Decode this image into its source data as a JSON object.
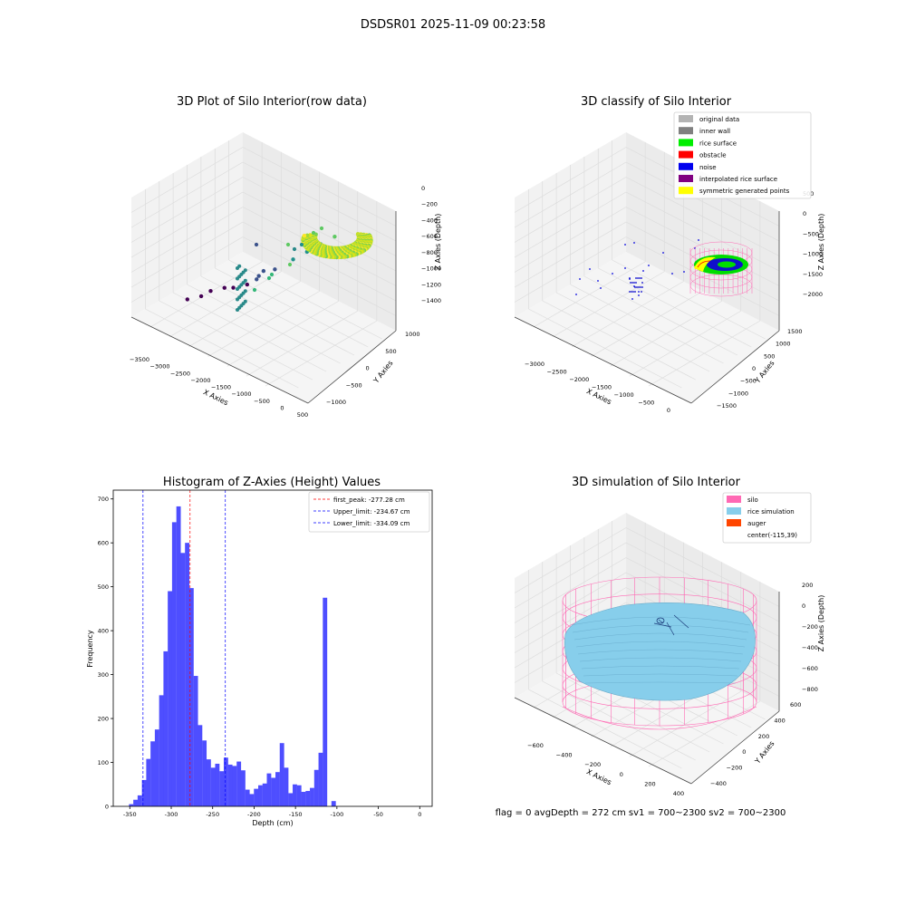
{
  "figure": {
    "suptitle": "DSDSR01 2025-11-09 00:23:58",
    "status_line": "flag = 0     avgDepth = 272 cm  sv1 = 700~2300  sv2 = 700~2300"
  },
  "chart_data": [
    {
      "type": "scatter",
      "title": "3D Plot of Silo Interior(row data)",
      "xlabel": "X Axies",
      "ylabel": "Y Axies",
      "zlabel": "Z Axies (Depth)",
      "x_ticks": [
        "−3500",
        "−3000",
        "−2500",
        "−2000",
        "−1500",
        "−1000",
        "−500",
        "0",
        "500"
      ],
      "y_ticks": [
        "1000",
        "500",
        "0",
        "−500",
        "−1000"
      ],
      "z_ticks": [
        "0",
        "−200",
        "−400",
        "−600",
        "−800",
        "−1000",
        "−1200",
        "−1400"
      ],
      "points": [
        {
          "x": -2800,
          "y": -500,
          "z": -1400
        },
        {
          "x": -2600,
          "y": -400,
          "z": -1350
        },
        {
          "x": -2500,
          "y": -300,
          "z": -1300
        },
        {
          "x": -2300,
          "y": -200,
          "z": -1250
        },
        {
          "x": -2100,
          "y": -200,
          "z": -1200
        },
        {
          "x": -1900,
          "y": -100,
          "z": -1150
        },
        {
          "x": -1800,
          "y": 0,
          "z": -1100
        },
        {
          "x": -1750,
          "y": 0,
          "z": -1050
        },
        {
          "x": -1700,
          "y": 50,
          "z": -1000
        },
        {
          "x": -1500,
          "y": 100,
          "z": -950
        },
        {
          "x": -1200,
          "y": 200,
          "z": -800
        },
        {
          "x": -1000,
          "y": 300,
          "z": -700
        },
        {
          "x": -800,
          "y": 400,
          "z": -600
        },
        {
          "x": -600,
          "y": 500,
          "z": -500
        }
      ],
      "surface": {
        "x_center": -300,
        "y_center": 200,
        "z_min": -650,
        "z_max": -250
      },
      "colormap": "viridis"
    },
    {
      "type": "scatter",
      "title": "3D classify of Silo Interior",
      "xlabel": "X Axies",
      "ylabel": "Y Axies",
      "zlabel": "Z Axies (Depth)",
      "x_ticks": [
        "−3000",
        "−2500",
        "−2000",
        "−1500",
        "−1000",
        "−500",
        "0"
      ],
      "y_ticks": [
        "1500",
        "1000",
        "500",
        "0",
        "−500",
        "−1000",
        "−1500"
      ],
      "z_ticks": [
        "500",
        "0",
        "−500",
        "−1000",
        "−1500",
        "−2000"
      ],
      "legend": [
        {
          "label": "original data",
          "color": "#b3b3b3"
        },
        {
          "label": "inner wall",
          "color": "#808080"
        },
        {
          "label": "rice surface",
          "color": "#00ee00"
        },
        {
          "label": "obstacle",
          "color": "#ff0000"
        },
        {
          "label": "noise",
          "color": "#0000ee"
        },
        {
          "label": "interpolated rice surface",
          "color": "#800080"
        },
        {
          "label": "symmetric generated points",
          "color": "#ffff00"
        }
      ]
    },
    {
      "type": "bar",
      "title": "Histogram of Z-Axies (Height) Values",
      "xlabel": "Depth (cm)",
      "ylabel": "Frequency",
      "xlim": [
        -370,
        15
      ],
      "ylim": [
        0,
        720
      ],
      "x_ticks": [
        -350,
        -300,
        -250,
        -200,
        -150,
        -100,
        -50,
        0
      ],
      "y_ticks": [
        0,
        100,
        200,
        300,
        400,
        500,
        600,
        700
      ],
      "bin_width": 5.2,
      "bin_start": -351,
      "values": [
        5,
        15,
        25,
        60,
        108,
        148,
        175,
        253,
        353,
        490,
        647,
        683,
        577,
        600,
        497,
        297,
        185,
        150,
        107,
        88,
        97,
        80,
        111,
        95,
        92,
        102,
        82,
        38,
        28,
        40,
        48,
        52,
        75,
        65,
        78,
        144,
        88,
        30,
        50,
        48,
        33,
        35,
        42,
        83,
        122,
        475,
        0,
        12
      ],
      "bar_color": "#4444ff",
      "vlines": [
        {
          "label": "first_peak: -277.28 cm",
          "x": -277.28,
          "color": "#ff0000"
        },
        {
          "label": "Upper_limit: -234.67 cm",
          "x": -234.67,
          "color": "#0000ff"
        },
        {
          "label": "Lower_limit: -334.09 cm",
          "x": -334.09,
          "color": "#0000ff"
        }
      ]
    },
    {
      "type": "area",
      "title": "3D simulation of Silo Interior",
      "xlabel": "X Axies",
      "ylabel": "Y Axies",
      "zlabel": "Z Axies (Depth)",
      "x_ticks": [
        "−600",
        "−400",
        "−200",
        "0",
        "200",
        "400"
      ],
      "y_ticks": [
        "600",
        "400",
        "200",
        "0",
        "−200",
        "−400"
      ],
      "z_ticks": [
        "200",
        "0",
        "−200",
        "−400",
        "−600",
        "−800"
      ],
      "legend": [
        {
          "label": "silo",
          "color": "#ff69b4"
        },
        {
          "label": "rice simulation",
          "color": "#87ceeb"
        },
        {
          "label": "auger",
          "color": "#ff4500"
        },
        {
          "label": "center(-115,39)",
          "color": ""
        }
      ]
    }
  ]
}
